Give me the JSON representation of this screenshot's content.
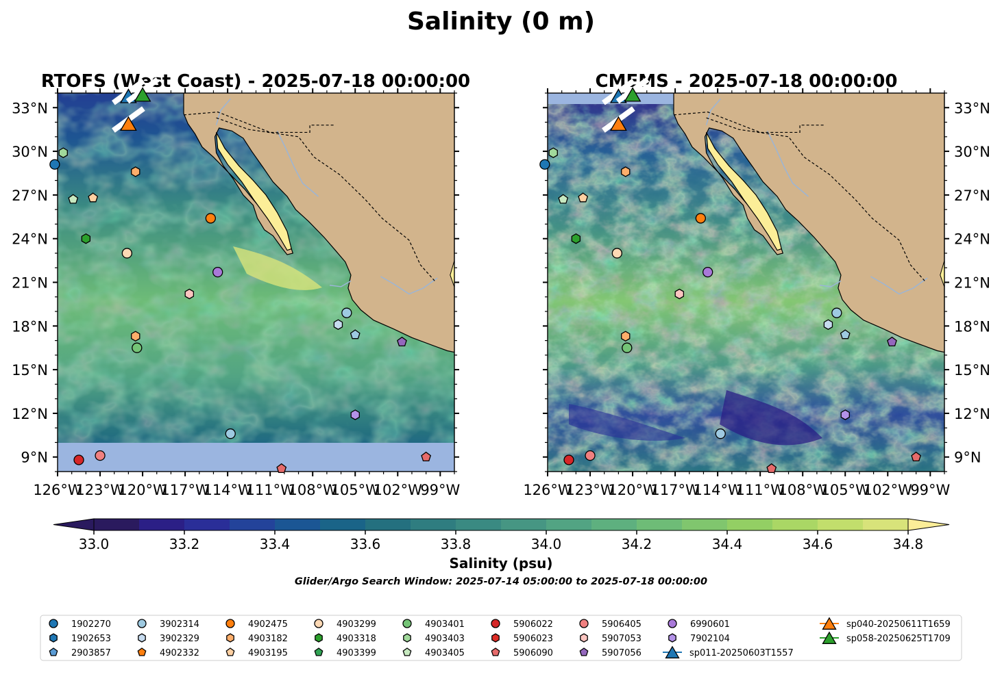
{
  "figure": {
    "suptitle": "Salinity (0 m)",
    "search_window": "Glider/Argo Search Window: 2025-07-14 05:00:00 to 2025-07-18 00:00:00"
  },
  "colors": {
    "land": "#d2b48c",
    "masked_water": "#9bb5e0",
    "rivers": "#9bb5d6",
    "colormap": [
      "#2a1a5e",
      "#2b1f86",
      "#2a2e98",
      "#23439a",
      "#1b5694",
      "#1a6488",
      "#24707f",
      "#2f7d80",
      "#3a8a82",
      "#469683",
      "#52a483",
      "#5eb07f",
      "#6ebc77",
      "#80c66e",
      "#93cf64",
      "#aad765",
      "#c2de6c",
      "#d8e37a",
      "#fcee98"
    ]
  },
  "chart_data": [
    {
      "type": "map",
      "title": "RTOFS (West Coast) - 2025-07-18 00:00:00",
      "lon_range": [
        -126,
        -98
      ],
      "lat_range": [
        8,
        34
      ],
      "x_ticks": [
        "126°W",
        "123°W",
        "120°W",
        "117°W",
        "114°W",
        "111°W",
        "108°W",
        "105°W",
        "102°W",
        "99°W"
      ],
      "y_ticks": [
        "9°N",
        "12°N",
        "15°N",
        "18°N",
        "21°N",
        "24°N",
        "27°N",
        "30°N",
        "33°N"
      ],
      "y_axis_side": "left",
      "masked_south_of_lat": 10.2
    },
    {
      "type": "map",
      "title": "CMEMS - 2025-07-18 00:00:00",
      "lon_range": [
        -126,
        -98
      ],
      "lat_range": [
        8,
        34
      ],
      "x_ticks": [
        "126°W",
        "123°W",
        "120°W",
        "117°W",
        "114°W",
        "111°W",
        "108°W",
        "105°W",
        "102°W",
        "99°W"
      ],
      "y_ticks": [
        "9°N",
        "12°N",
        "15°N",
        "18°N",
        "21°N",
        "24°N",
        "27°N",
        "30°N",
        "33°N"
      ],
      "y_axis_side": "right",
      "masked_north_of_lat": 33.2
    }
  ],
  "colorbar": {
    "label": "Salinity (psu)",
    "min": 32.9,
    "max": 34.9,
    "extend": "both",
    "ticks": [
      "33.0",
      "33.2",
      "33.4",
      "33.6",
      "33.8",
      "34.0",
      "34.2",
      "34.4",
      "34.6",
      "34.8"
    ]
  },
  "floats": [
    {
      "id": "1902270",
      "marker": "circle",
      "color": "#1f77b4",
      "lon": -126.2,
      "lat": 29.1
    },
    {
      "id": "1902653",
      "marker": "hexagon",
      "color": "#1f77b4",
      "lon": null,
      "lat": null
    },
    {
      "id": "2903857",
      "marker": "pentagon",
      "color": "#5a9bd4",
      "lon": null,
      "lat": null
    },
    {
      "id": "3902314",
      "marker": "circle",
      "color": "#9ecae1",
      "lon": -105.6,
      "lat": 18.9
    },
    {
      "id": "3902329",
      "marker": "hexagon",
      "color": "#c6dbef",
      "lon": -106.2,
      "lat": 18.1
    },
    {
      "id": "4902332",
      "marker": "pentagon",
      "color": "#ff7f0e",
      "lon": null,
      "lat": null
    },
    {
      "id": "4902475",
      "marker": "circle",
      "color": "#ff7f0e",
      "lon": -115.2,
      "lat": 25.4
    },
    {
      "id": "4903182",
      "marker": "hexagon",
      "color": "#fdae6b",
      "lon": -120.5,
      "lat": 17.3
    },
    {
      "id": "4903195",
      "marker": "pentagon",
      "color": "#fdd0a2",
      "lon": -123.5,
      "lat": 26.8
    },
    {
      "id": "4903299",
      "marker": "circle",
      "color": "#fdd9b5",
      "lon": -121.1,
      "lat": 23.0
    },
    {
      "id": "4903318",
      "marker": "hexagon",
      "color": "#2ca02c",
      "lon": -124.0,
      "lat": 24.0
    },
    {
      "id": "4903399",
      "marker": "pentagon",
      "color": "#31a354",
      "lon": null,
      "lat": null
    },
    {
      "id": "4903401",
      "marker": "circle",
      "color": "#74c476",
      "lon": null,
      "lat": null
    },
    {
      "id": "4903403",
      "marker": "hexagon",
      "color": "#a1d99b",
      "lon": -125.6,
      "lat": 29.9
    },
    {
      "id": "4903405",
      "marker": "pentagon",
      "color": "#c7e9c0",
      "lon": -124.9,
      "lat": 26.7
    },
    {
      "id": "5906022",
      "marker": "circle",
      "color": "#d62728",
      "lon": -124.5,
      "lat": 8.8
    },
    {
      "id": "5906023",
      "marker": "hexagon",
      "color": "#de2d26",
      "lon": null,
      "lat": null
    },
    {
      "id": "5906090",
      "marker": "pentagon",
      "color": "#e66b6b",
      "lon": -110.2,
      "lat": 8.2
    },
    {
      "id": "5906405",
      "marker": "circle",
      "color": "#f08080",
      "lon": -123.0,
      "lat": 9.1
    },
    {
      "id": "5907053",
      "marker": "hexagon",
      "color": "#fcc5c0",
      "lon": -116.7,
      "lat": 20.2
    },
    {
      "id": "5907056",
      "marker": "pentagon",
      "color": "#9467bd",
      "lon": -101.7,
      "lat": 16.9
    },
    {
      "id": "6990601",
      "marker": "circle",
      "color": "#a979d9",
      "lon": -114.7,
      "lat": 21.7
    },
    {
      "id": "7902104",
      "marker": "hexagon",
      "color": "#b392e8",
      "lon": -105.0,
      "lat": 11.9
    },
    {
      "id": "extra-1",
      "marker": "pentagon",
      "color": "#9ecae1",
      "lon": -105.0,
      "lat": 17.4
    },
    {
      "id": "extra-2",
      "marker": "circle",
      "color": "#9ecae1",
      "lon": -113.8,
      "lat": 10.6
    },
    {
      "id": "extra-3",
      "marker": "circle",
      "color": "#74c476",
      "lon": -120.4,
      "lat": 16.5
    },
    {
      "id": "extra-4",
      "marker": "hexagon",
      "color": "#fdae6b",
      "lon": -120.5,
      "lat": 28.6
    },
    {
      "id": "extra-5",
      "marker": "pentagon",
      "color": "#e66b6b",
      "lon": -100.0,
      "lat": 9.0
    }
  ],
  "gliders": [
    {
      "id": "sp011-20250603T1557",
      "color": "#1f77b4",
      "lon": -121.0,
      "lat": 33.8
    },
    {
      "id": "sp040-20250611T1659",
      "color": "#ff7f0e",
      "lon": -121.0,
      "lat": 31.9
    },
    {
      "id": "sp058-20250625T1709",
      "color": "#2ca02c",
      "lon": -120.0,
      "lat": 33.9
    }
  ],
  "legend": {
    "columns": [
      [
        "1902270",
        "1902653",
        "2903857"
      ],
      [
        "3902314",
        "3902329",
        "4902332"
      ],
      [
        "4902475",
        "4903182",
        "4903195"
      ],
      [
        "4903299",
        "4903318",
        "4903399"
      ],
      [
        "4903401",
        "4903403",
        "4903405"
      ],
      [
        "5906022",
        "5906023",
        "5906090"
      ],
      [
        "5906405",
        "5907053",
        "5907056"
      ],
      [
        "6990601",
        "7902104",
        "sp011-20250603T1557"
      ],
      [
        "sp040-20250611T1659",
        "sp058-20250625T1709"
      ]
    ]
  }
}
